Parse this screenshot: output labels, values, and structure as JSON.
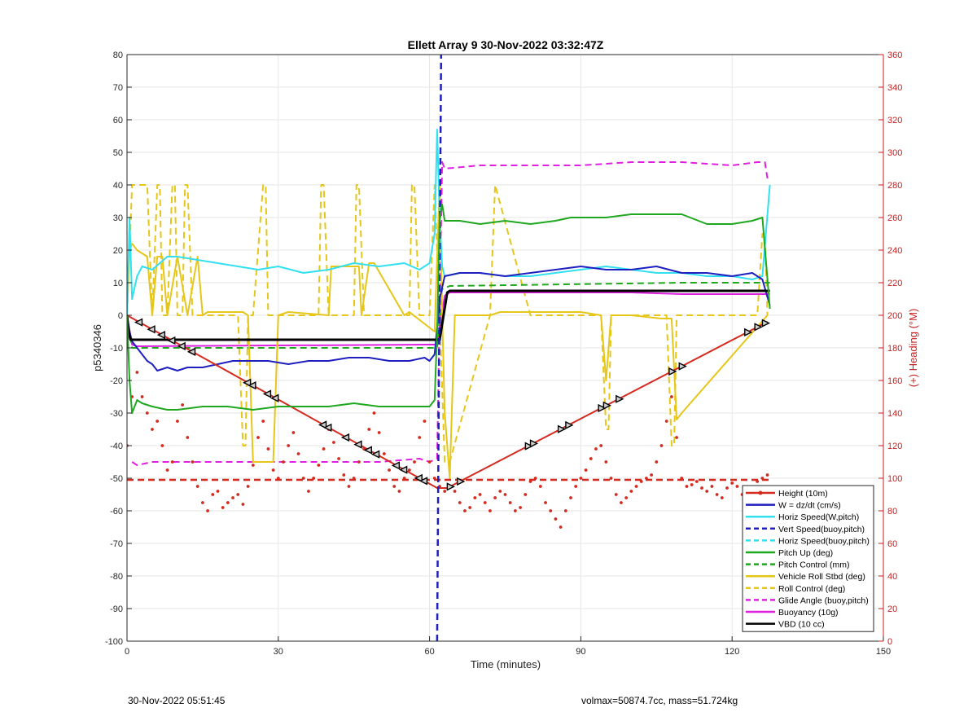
{
  "chart_data": {
    "type": "line",
    "title": "Ellett Array 9 30-Nov-2022 03:32:47Z",
    "xlabel": "Time (minutes)",
    "ylabel": "p5340346",
    "y2label": "(+) Heading (°M)",
    "xlim": [
      0,
      150
    ],
    "ylim": [
      -100,
      80
    ],
    "y2lim": [
      0,
      360
    ],
    "xticks": [
      0,
      30,
      60,
      90,
      120,
      150
    ],
    "yticks": [
      -100,
      -90,
      -80,
      -70,
      -60,
      -50,
      -40,
      -30,
      -20,
      -10,
      0,
      10,
      20,
      30,
      40,
      50,
      60,
      70,
      80
    ],
    "y2ticks": [
      0,
      20,
      40,
      60,
      80,
      100,
      120,
      140,
      160,
      180,
      200,
      220,
      240,
      260,
      280,
      300,
      320,
      340,
      360
    ],
    "grid": true,
    "legend_position": "bottom-right",
    "colors": {
      "red": "#d42a1f",
      "blue": "#1f1fbf",
      "cyan": "#33e0f0",
      "green": "#1fa81f",
      "yellow": "#e6c619",
      "magenta": "#e020e0",
      "black": "#000000",
      "axis2": "#c81e1e"
    },
    "legend": [
      {
        "label": "Height (10m)",
        "color": "#d42a1f",
        "style": "solid",
        "marker": true
      },
      {
        "label": "W = dz/dt (cm/s)",
        "color": "#1f1fbf",
        "style": "solid"
      },
      {
        "label": "Horiz Speed(W,pitch)",
        "color": "#33e0f0",
        "style": "solid"
      },
      {
        "label": "Vert Speed(buoy,pitch)",
        "color": "#1f1fbf",
        "style": "dashed"
      },
      {
        "label": "Horiz Speed(buoy,pitch)",
        "color": "#33e0f0",
        "style": "dashed"
      },
      {
        "label": "Pitch Up (deg)",
        "color": "#1fa81f",
        "style": "solid"
      },
      {
        "label": "Pitch Control (mm)",
        "color": "#1fa81f",
        "style": "dashed"
      },
      {
        "label": "Vehicle Roll Stbd (deg)",
        "color": "#e6c619",
        "style": "solid"
      },
      {
        "label": "Roll Control (deg)",
        "color": "#e6c619",
        "style": "dashed"
      },
      {
        "label": "Glide Angle (buoy,pitch)",
        "color": "#e020e0",
        "style": "dashed"
      },
      {
        "label": "Buoyancy (10g)",
        "color": "#e020e0",
        "style": "solid"
      },
      {
        "label": "VBD (10 cc)",
        "color": "#000000",
        "style": "solid"
      }
    ],
    "series": [
      {
        "name": "Height (10m)",
        "axis": "left",
        "color": "#d42a1f",
        "style": "solid",
        "width": 2,
        "x": [
          0,
          61.5,
          63.5,
          127
        ],
        "y": [
          0,
          -53,
          -53,
          -2
        ]
      },
      {
        "name": "W = dz/dt (cm/s)",
        "axis": "left",
        "color": "#1f1fbf",
        "style": "solid",
        "width": 2,
        "x": [
          0,
          0.5,
          1,
          2,
          3,
          4,
          5,
          6,
          8,
          10,
          12,
          15,
          18,
          21,
          24,
          28,
          32,
          36,
          40,
          44,
          48,
          52,
          56,
          59,
          60,
          61,
          62,
          63,
          66,
          70,
          75,
          80,
          85,
          90,
          95,
          100,
          105,
          110,
          115,
          120,
          124,
          126,
          127.5
        ],
        "y": [
          0,
          -5,
          -8,
          -10,
          -12,
          -14,
          -15,
          -17,
          -16,
          -17,
          -16,
          -16,
          -15,
          -14,
          -14,
          -14,
          -15,
          -14,
          -14,
          -13,
          -13,
          -14,
          -14,
          -13,
          -14,
          -12,
          5,
          12,
          13,
          13,
          12,
          13,
          14,
          15,
          14,
          14,
          15,
          13,
          13,
          12,
          13,
          11,
          3
        ]
      },
      {
        "name": "Horiz Speed(W,pitch)",
        "axis": "left",
        "color": "#33e0f0",
        "style": "solid",
        "width": 2,
        "x": [
          0,
          0.5,
          1,
          2,
          3,
          5,
          8,
          10,
          14,
          18,
          22,
          26,
          30,
          35,
          40,
          45,
          50,
          55,
          58,
          60,
          61,
          61.5,
          62,
          62.5,
          63,
          66,
          70,
          75,
          80,
          85,
          90,
          95,
          100,
          105,
          110,
          115,
          120,
          124,
          126,
          127.5
        ],
        "y": [
          0,
          30,
          5,
          12,
          15,
          14,
          18,
          18,
          17,
          16,
          15,
          14,
          15,
          13,
          14,
          16,
          15,
          16,
          14,
          16,
          25,
          57,
          30,
          15,
          12,
          13,
          13,
          12,
          12,
          13,
          14,
          15,
          14,
          13,
          13,
          12,
          12,
          11,
          12,
          40
        ]
      },
      {
        "name": "Vert Speed(buoy,pitch)",
        "axis": "left",
        "color": "#1f1fbf",
        "style": "dashed",
        "width": 2.5,
        "x": [
          61.5,
          62.3
        ],
        "y": [
          -100,
          80
        ]
      },
      {
        "name": "Pitch Up (deg)",
        "axis": "left",
        "color": "#1fa81f",
        "style": "solid",
        "width": 2,
        "x": [
          0,
          0.5,
          1,
          2,
          3,
          5,
          8,
          10,
          15,
          20,
          25,
          30,
          35,
          40,
          45,
          50,
          55,
          60,
          61,
          61.5,
          62,
          62.5,
          63,
          66,
          70,
          75,
          80,
          85,
          88,
          90,
          95,
          100,
          105,
          110,
          115,
          120,
          124,
          126,
          127.5
        ],
        "y": [
          0,
          -20,
          -30,
          -26,
          -27,
          -28,
          -29,
          -29,
          -28,
          -28,
          -29,
          -28,
          -28,
          -28,
          -27,
          -28,
          -28,
          -28,
          -26,
          -5,
          30,
          34,
          29,
          29,
          28,
          29,
          28,
          29,
          30,
          30,
          30,
          31,
          31,
          31,
          28,
          28,
          29,
          30,
          2
        ]
      },
      {
        "name": "Pitch Control (mm)",
        "axis": "left",
        "color": "#1fa81f",
        "style": "dashed",
        "width": 2,
        "x": [
          0,
          1,
          5,
          20,
          30,
          45,
          60,
          61.5,
          62.5,
          64,
          110,
          127.5
        ],
        "y": [
          0,
          -10,
          -10,
          -10,
          -10,
          -10,
          -10,
          -10,
          8,
          9,
          10,
          10
        ]
      },
      {
        "name": "Vehicle Roll Stbd (deg)",
        "axis": "left",
        "color": "#e6c619",
        "style": "solid",
        "width": 2,
        "x": [
          0,
          0.5,
          1,
          2,
          4,
          5,
          6,
          7,
          8,
          10,
          12,
          14,
          15,
          16,
          23,
          24,
          25,
          29,
          30,
          32,
          40,
          40.5,
          46,
          46.5,
          48,
          49,
          55,
          56,
          61,
          62,
          62.5,
          63,
          64,
          65,
          72,
          74,
          90,
          94,
          95,
          96,
          100,
          106,
          108,
          109,
          110,
          127
        ],
        "y": [
          0,
          20,
          22,
          20,
          18,
          0,
          18,
          18,
          0,
          18,
          0,
          18,
          0,
          1,
          1,
          0,
          -45,
          -45,
          0,
          1,
          0,
          15,
          15,
          0,
          16,
          16,
          0,
          1,
          -5,
          40,
          0,
          -30,
          -50,
          0,
          0,
          1,
          1,
          0,
          -20,
          0,
          0,
          -1,
          -1,
          -32,
          -30,
          0
        ]
      },
      {
        "name": "Roll Control (deg)",
        "axis": "left",
        "color": "#e6c619",
        "style": "dashed",
        "width": 2,
        "x": [
          0,
          1,
          2,
          3,
          4,
          5,
          6,
          6.5,
          7,
          8,
          9,
          9.5,
          10,
          11,
          11.5,
          12,
          13,
          22,
          23,
          23.5,
          24,
          25,
          27,
          27.5,
          28,
          31,
          38,
          38.5,
          39,
          40,
          45,
          45.5,
          46,
          47,
          56,
          56.5,
          57,
          58,
          60,
          61,
          62,
          63,
          64,
          72,
          73,
          80,
          94,
          95,
          95.5,
          96,
          107,
          108,
          108.5,
          109,
          125,
          126,
          126.5,
          127
        ],
        "y": [
          0,
          40,
          40,
          40,
          40,
          0,
          40,
          40,
          0,
          0,
          40,
          40,
          0,
          0,
          40,
          40,
          0,
          0,
          -40,
          -40,
          0,
          0,
          40,
          40,
          0,
          0,
          0,
          40,
          40,
          0,
          0,
          40,
          40,
          0,
          0,
          40,
          40,
          0,
          0,
          40,
          0,
          -45,
          -45,
          0,
          40,
          0,
          0,
          -35,
          -35,
          0,
          0,
          -40,
          -40,
          0,
          0,
          25,
          25,
          0
        ]
      },
      {
        "name": "Glide Angle (buoy,pitch)",
        "axis": "left",
        "color": "#e020e0",
        "style": "dashed",
        "width": 2,
        "x": [
          1,
          2,
          5,
          10,
          20,
          30,
          40,
          50,
          58,
          60,
          61.5,
          62.5,
          63,
          70,
          80,
          90,
          100,
          110,
          120,
          125,
          126.5,
          127
        ],
        "y": [
          -45,
          -46,
          -45,
          -45,
          -45,
          -45,
          -45,
          -45,
          -44,
          -45,
          -44,
          47,
          45,
          46,
          46,
          46,
          47,
          47,
          46,
          47,
          47,
          42
        ]
      },
      {
        "name": "Buoyancy (10g)",
        "axis": "left",
        "color": "#e020e0",
        "style": "solid",
        "width": 2,
        "x": [
          0,
          1,
          2,
          60,
          61.5,
          63,
          64,
          100,
          110,
          127.5
        ],
        "y": [
          0,
          -9,
          -9.5,
          -9,
          -9,
          6,
          7,
          7,
          6.5,
          6.5
        ]
      },
      {
        "name": "VBD (10 cc)",
        "axis": "left",
        "color": "#000000",
        "style": "solid",
        "width": 3,
        "x": [
          0,
          0.3,
          0.7,
          61,
          62,
          63.5,
          64,
          127.5
        ],
        "y": [
          0,
          -5,
          -7.5,
          -7.5,
          -7.5,
          7,
          7.5,
          7.5
        ]
      },
      {
        "name": "Heading (red dashed)",
        "axis": "right",
        "color": "#d42a1f",
        "style": "dashed",
        "width": 2.5,
        "x": [
          0,
          127.5
        ],
        "y": [
          99,
          99
        ]
      },
      {
        "name": "Heading (red dots)",
        "axis": "right",
        "color": "#d42a1f",
        "style": "dots",
        "width": 0,
        "x": [
          0,
          1,
          2,
          3,
          4,
          5,
          6,
          7,
          8,
          9,
          10,
          11,
          12,
          13,
          14,
          15,
          16,
          17,
          18,
          19,
          20,
          21,
          22,
          23,
          24,
          25,
          26,
          27,
          28,
          29,
          30,
          31,
          32,
          33,
          34,
          35,
          36,
          37,
          38,
          39,
          40,
          41,
          42,
          43,
          44,
          45,
          46,
          47,
          48,
          49,
          50,
          51,
          52,
          53,
          54,
          55,
          56,
          57,
          58,
          59,
          60,
          61,
          62,
          63,
          64,
          65,
          66,
          67,
          68,
          69,
          70,
          71,
          72,
          73,
          74,
          75,
          76,
          77,
          78,
          79,
          80,
          81,
          82,
          83,
          84,
          85,
          86,
          87,
          88,
          89,
          90,
          91,
          92,
          93,
          94,
          95,
          96,
          97,
          98,
          99,
          100,
          101,
          102,
          103,
          104,
          105,
          106,
          107,
          108,
          109,
          110,
          111,
          112,
          113,
          114,
          115,
          116,
          117,
          118,
          119,
          120,
          121,
          122,
          123,
          124,
          125,
          126,
          127
        ],
        "y": [
          120,
          150,
          165,
          150,
          140,
          130,
          135,
          120,
          105,
          110,
          135,
          145,
          125,
          110,
          95,
          85,
          80,
          90,
          92,
          82,
          85,
          88,
          90,
          84,
          95,
          108,
          125,
          135,
          118,
          105,
          100,
          110,
          120,
          128,
          115,
          100,
          92,
          100,
          108,
          118,
          130,
          122,
          112,
          102,
          95,
          100,
          110,
          118,
          130,
          140,
          128,
          115,
          105,
          95,
          92,
          100,
          105,
          110,
          125,
          135,
          110,
          100,
          95,
          92,
          95,
          92,
          85,
          80,
          82,
          88,
          90,
          85,
          80,
          88,
          92,
          90,
          85,
          80,
          82,
          90,
          98,
          100,
          95,
          85,
          80,
          75,
          70,
          80,
          88,
          95,
          100,
          105,
          112,
          118,
          120,
          110,
          100,
          90,
          85,
          88,
          92,
          95,
          98,
          100,
          102,
          110,
          120,
          135,
          150,
          125,
          100,
          95,
          96,
          98,
          94,
          92,
          95,
          90,
          88,
          94,
          97,
          95,
          90,
          86,
          92,
          98,
          100,
          102
        ]
      }
    ],
    "markers": {
      "down_x": [
        2.5,
        5,
        7,
        9,
        11,
        13,
        24,
        25,
        28,
        29.5,
        39,
        40,
        43.5,
        46,
        48,
        49.5,
        53.5,
        55,
        58,
        59
      ],
      "up_x": [
        64,
        66,
        79.5,
        80.5,
        86,
        87.5,
        94,
        95,
        97.5,
        108,
        110,
        123,
        125,
        126.5
      ]
    }
  },
  "footer": {
    "left": "30-Nov-2022 05:51:45",
    "right": "volmax=50874.7cc, mass=51.724kg"
  }
}
